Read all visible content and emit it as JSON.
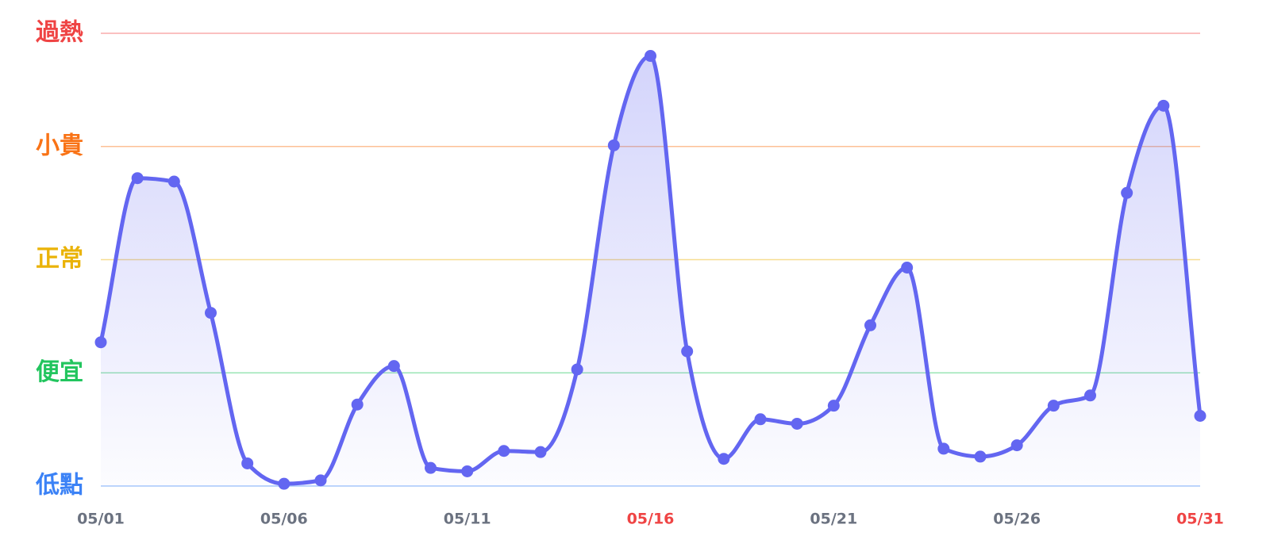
{
  "chart_data": {
    "type": "line",
    "categories": [
      "05/01",
      null,
      null,
      null,
      null,
      "05/06",
      null,
      null,
      null,
      null,
      "05/11",
      null,
      null,
      null,
      null,
      "05/16",
      null,
      null,
      null,
      null,
      "05/21",
      null,
      null,
      null,
      null,
      "05/26",
      null,
      null,
      null,
      null,
      "05/31"
    ],
    "x_label_colors": [
      "#6b7280",
      null,
      null,
      null,
      null,
      "#6b7280",
      null,
      null,
      null,
      null,
      "#6b7280",
      null,
      null,
      null,
      null,
      "#ef4444",
      null,
      null,
      null,
      null,
      "#6b7280",
      null,
      null,
      null,
      null,
      "#6b7280",
      null,
      null,
      null,
      null,
      "#ef4444"
    ],
    "series": [
      {
        "color": "#6366f1",
        "values": [
          1.27,
          2.72,
          2.69,
          1.53,
          0.2,
          0.02,
          0.05,
          0.72,
          1.06,
          0.16,
          0.13,
          0.31,
          0.3,
          1.03,
          3.01,
          3.8,
          1.19,
          0.24,
          0.59,
          0.55,
          0.71,
          1.42,
          1.93,
          0.33,
          0.26,
          0.36,
          0.71,
          0.8,
          2.59,
          3.36,
          0.62
        ]
      }
    ],
    "ylim": [
      0,
      4
    ],
    "yticks": [
      {
        "value": 0,
        "label": "低點",
        "color": "#3b82f6"
      },
      {
        "value": 1,
        "label": "便宜",
        "color": "#22c55e"
      },
      {
        "value": 2,
        "label": "正常",
        "color": "#eab308"
      },
      {
        "value": 3,
        "label": "小貴",
        "color": "#f97316"
      },
      {
        "value": 4,
        "label": "過熱",
        "color": "#ef4444"
      }
    ],
    "grid": true
  }
}
